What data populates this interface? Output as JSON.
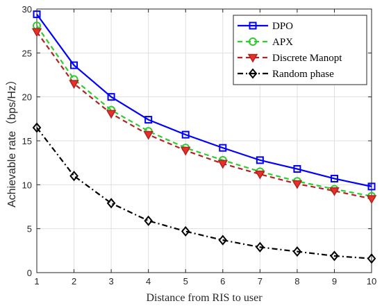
{
  "chart_data": {
    "type": "line",
    "title": "",
    "xlabel": "Distance from RIS to user",
    "ylabel": "Achievable rate（bps/Hz）",
    "xlim": [
      1,
      10
    ],
    "ylim": [
      0,
      30
    ],
    "x_ticks": [
      1,
      2,
      3,
      4,
      5,
      6,
      7,
      8,
      9,
      10
    ],
    "y_ticks": [
      0,
      5,
      10,
      15,
      20,
      25,
      30
    ],
    "grid": true,
    "legend_position": "top-right",
    "x": [
      1,
      2,
      3,
      4,
      5,
      6,
      7,
      8,
      9,
      10
    ],
    "series": [
      {
        "name": "DPO",
        "values": [
          29.4,
          23.6,
          20.0,
          17.4,
          15.7,
          14.2,
          12.8,
          11.8,
          10.7,
          9.8
        ],
        "color": "#0000ff",
        "line_style": "solid",
        "marker": "square"
      },
      {
        "name": "APX",
        "values": [
          28.1,
          22.0,
          18.5,
          16.1,
          14.2,
          12.8,
          11.5,
          10.4,
          9.5,
          8.7
        ],
        "color": "#2ecc2e",
        "line_style": "dashed",
        "marker": "circle"
      },
      {
        "name": "Discrete Manopt",
        "values": [
          27.4,
          21.5,
          18.1,
          15.7,
          13.9,
          12.4,
          11.2,
          10.1,
          9.3,
          8.4
        ],
        "color": "#b22222",
        "line_style": "dashed",
        "marker": "triangle-down"
      },
      {
        "name": "Random phase",
        "values": [
          16.5,
          11.0,
          7.9,
          5.9,
          4.7,
          3.7,
          2.9,
          2.4,
          1.9,
          1.6
        ],
        "color": "#000000",
        "line_style": "dashdot",
        "marker": "diamond"
      }
    ]
  }
}
